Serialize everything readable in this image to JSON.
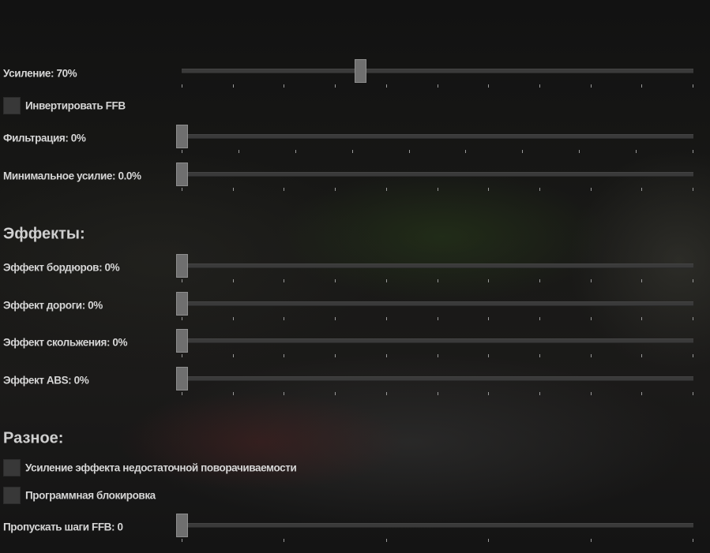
{
  "ffb": {
    "gain": {
      "label": "Усиление: 70%",
      "value": 0.7
    },
    "invert": {
      "label": "Инвертировать FFB",
      "checked": false
    },
    "filter": {
      "label": "Фильтрация: 0%",
      "value": 0
    },
    "min_force": {
      "label": "Минимальное усилие: 0.0%",
      "value": 0
    }
  },
  "effects": {
    "heading": "Эффекты:",
    "kerb": {
      "label": "Эффект бордюров: 0%",
      "value": 0
    },
    "road": {
      "label": "Эффект дороги: 0%",
      "value": 0
    },
    "slip": {
      "label": "Эффект скольжения: 0%",
      "value": 0
    },
    "abs": {
      "label": "Эффект ABS: 0%",
      "value": 0
    }
  },
  "misc": {
    "heading": "Разное:",
    "understeer": {
      "label": "Усиление эффекта недостаточной поворачиваемости",
      "checked": false
    },
    "soft_lock": {
      "label": "Программная блокировка",
      "checked": false
    },
    "skip_steps": {
      "label": "Пропускать шаги FFB: 0",
      "value": 0
    }
  }
}
